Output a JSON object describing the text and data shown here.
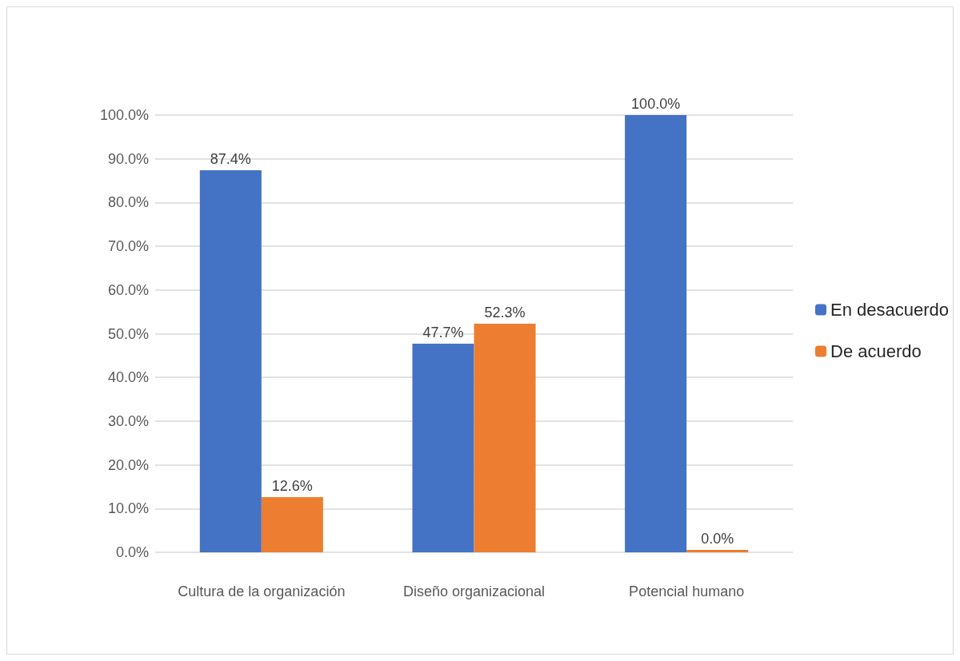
{
  "chart_data": {
    "type": "bar",
    "categories": [
      "Cultura de la organización",
      "Diseño organizacional",
      "Potencial humano"
    ],
    "series": [
      {
        "name": "En desacuerdo",
        "color": "#4472c4",
        "values": [
          87.4,
          47.7,
          100.0
        ],
        "value_labels": [
          "87.4%",
          "47.7%",
          "100.0%"
        ]
      },
      {
        "name": "De acuerdo",
        "color": "#ed7d31",
        "values": [
          12.6,
          52.3,
          0.0
        ],
        "value_labels": [
          "12.6%",
          "52.3%",
          "0.0%"
        ]
      }
    ],
    "ylim": [
      0,
      100
    ],
    "yticks": [
      {
        "value": 0,
        "label": "0.0%"
      },
      {
        "value": 10,
        "label": "10.0%"
      },
      {
        "value": 20,
        "label": "20.0%"
      },
      {
        "value": 30,
        "label": "30.0%"
      },
      {
        "value": 40,
        "label": "40.0%"
      },
      {
        "value": 50,
        "label": "50.0%"
      },
      {
        "value": 60,
        "label": "60.0%"
      },
      {
        "value": 70,
        "label": "70.0%"
      },
      {
        "value": 80,
        "label": "80.0%"
      },
      {
        "value": 90,
        "label": "90.0%"
      },
      {
        "value": 100,
        "label": "100.0%"
      }
    ],
    "grid": "y",
    "legend": "right"
  }
}
